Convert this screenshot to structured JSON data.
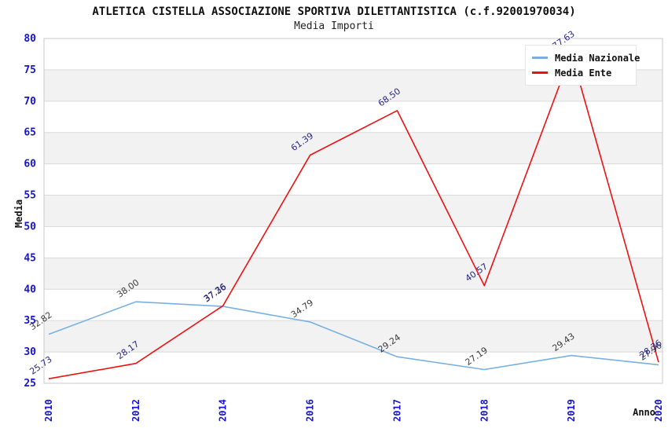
{
  "header": {
    "title": "ATLETICA CISTELLA ASSOCIAZIONE SPORTIVA DILETTANTISTICA (c.f.92001970034)",
    "subtitle": "Media Importi"
  },
  "legend": {
    "items": [
      {
        "label": "Media Nazionale",
        "color": "#79b0e2"
      },
      {
        "label": "Media Ente",
        "color": "#ee1111"
      }
    ]
  },
  "chart_data": {
    "type": "line",
    "title": "ATLETICA CISTELLA ASSOCIAZIONE SPORTIVA DILETTANTISTICA (c.f.92001970034)",
    "subtitle": "Media Importi",
    "xlabel": "Anno",
    "ylabel": "Media",
    "x": [
      "2010",
      "2012",
      "2014",
      "2016",
      "2017",
      "2018",
      "2019",
      "2020"
    ],
    "series": [
      {
        "name": "Media Nazionale",
        "color": "#79b0e2",
        "label_color": "#3c3c3c",
        "values": [
          32.82,
          38.0,
          37.26,
          34.79,
          29.24,
          27.19,
          29.43,
          27.96
        ],
        "labels": [
          "32.82",
          "38.00",
          "37.26",
          "34.79",
          "29.24",
          "27.19",
          "29.43",
          "27.96"
        ]
      },
      {
        "name": "Media Ente",
        "color": "#ee1111",
        "label_color": "#28288c",
        "values": [
          25.73,
          28.17,
          37.36,
          61.39,
          68.5,
          40.57,
          77.63,
          28.36
        ],
        "labels": [
          "25.73",
          "28.17",
          "37.36",
          "61.39",
          "68.50",
          "40.57",
          "77.63",
          "28.36"
        ]
      }
    ],
    "ylim": [
      25,
      80
    ],
    "ytick_step": 5,
    "yticks": [
      "25",
      "30",
      "35",
      "40",
      "45",
      "50",
      "55",
      "60",
      "65",
      "70",
      "75",
      "80"
    ],
    "grid": true,
    "legend_position": "top-right",
    "colors": {
      "tick_label": "#1515cf",
      "band": "#f2f2f2",
      "gridline": "#dadada",
      "plot_border": "#c8c8c8",
      "axis_title": "#111111"
    }
  }
}
